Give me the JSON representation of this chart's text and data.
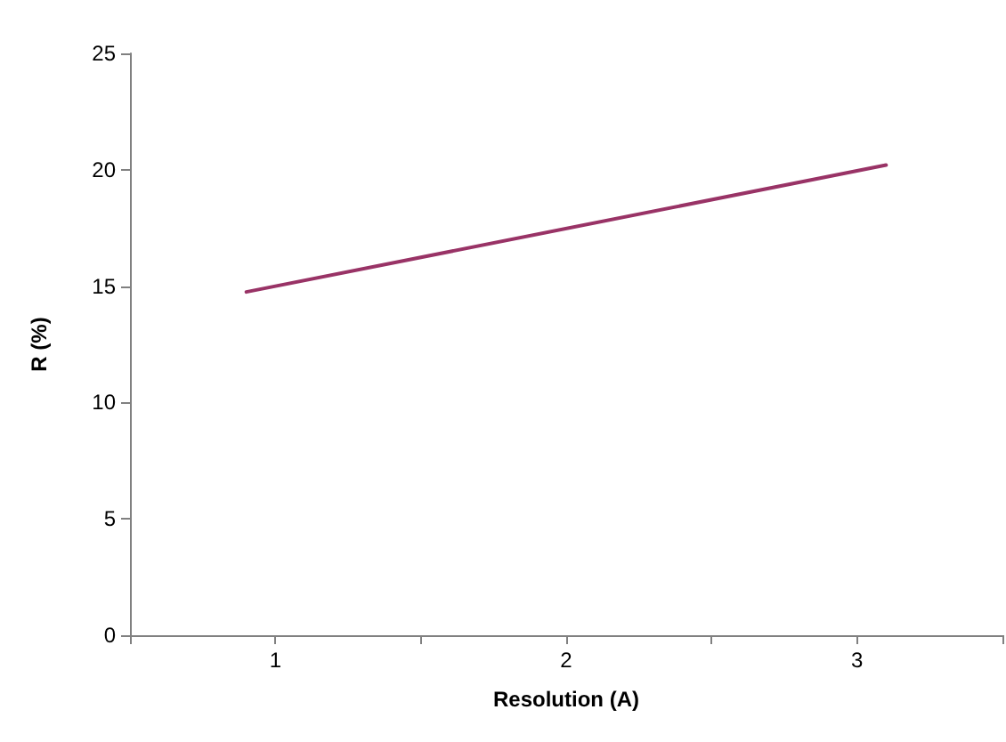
{
  "chart_data": {
    "type": "line",
    "xlabel": "Resolution (A)",
    "ylabel": "R (%)",
    "series": [
      {
        "color": "#993366",
        "x": [
          0.9,
          3.1
        ],
        "values": [
          14.75,
          20.2
        ]
      }
    ],
    "xlim": [
      0.5,
      3.5
    ],
    "xticks": [
      {
        "value": 0.5,
        "label": null
      },
      1,
      {
        "value": 1.5,
        "label": null
      },
      2,
      {
        "value": 2.5,
        "label": null
      },
      3,
      {
        "value": 3.5,
        "label": null
      }
    ],
    "ylim": [
      0,
      25
    ],
    "yticks": [
      0,
      5,
      10,
      15,
      20,
      25
    ],
    "grid": false,
    "marker": "none",
    "line_style": "solid"
  }
}
